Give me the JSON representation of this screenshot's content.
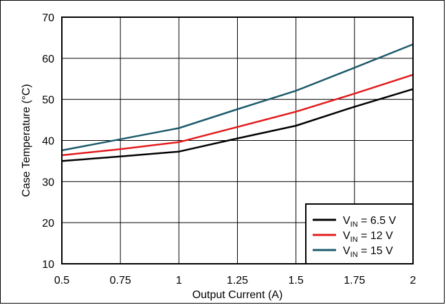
{
  "chart_data": {
    "type": "line",
    "xlabel": "Output Current (A)",
    "ylabel": "Case Temperature (°C)",
    "xlim": [
      0.5,
      2
    ],
    "ylim": [
      10,
      70
    ],
    "xticks": [
      0.5,
      0.75,
      1,
      1.25,
      1.5,
      1.75,
      2
    ],
    "xtick_labels": [
      "0.5",
      "0.75",
      "1",
      "1.25",
      "1.5",
      "1.75",
      "2"
    ],
    "yticks": [
      10,
      20,
      30,
      40,
      50,
      60,
      70
    ],
    "ytick_labels": [
      "10",
      "20",
      "30",
      "40",
      "50",
      "60",
      "70"
    ],
    "grid": true,
    "legend_position": "bottom-right",
    "series": [
      {
        "name": "VIN = 6.5 V",
        "legend_main": "V",
        "legend_sub": "IN",
        "legend_rest": " = 6.5 V",
        "color": "#000000",
        "x": [
          0.5,
          0.75,
          1,
          1.25,
          1.5,
          1.75,
          2
        ],
        "y": [
          35,
          36.1,
          37.3,
          40.5,
          43.6,
          48.2,
          52.5
        ]
      },
      {
        "name": "VIN = 12 V",
        "legend_main": "V",
        "legend_sub": "IN",
        "legend_rest": " = 12 V",
        "color": "#e31a1c",
        "x": [
          0.5,
          0.75,
          1,
          1.25,
          1.5,
          1.75,
          2
        ],
        "y": [
          36.4,
          37.9,
          39.6,
          43.3,
          47,
          51.4,
          56
        ]
      },
      {
        "name": "VIN = 15 V",
        "legend_main": "V",
        "legend_sub": "IN",
        "legend_rest": " = 15 V",
        "color": "#1c5a6b",
        "x": [
          0.5,
          0.75,
          1,
          1.25,
          1.5,
          1.75,
          2
        ],
        "y": [
          37.6,
          40.3,
          43,
          47.6,
          52.1,
          57.7,
          63.4
        ]
      }
    ]
  }
}
